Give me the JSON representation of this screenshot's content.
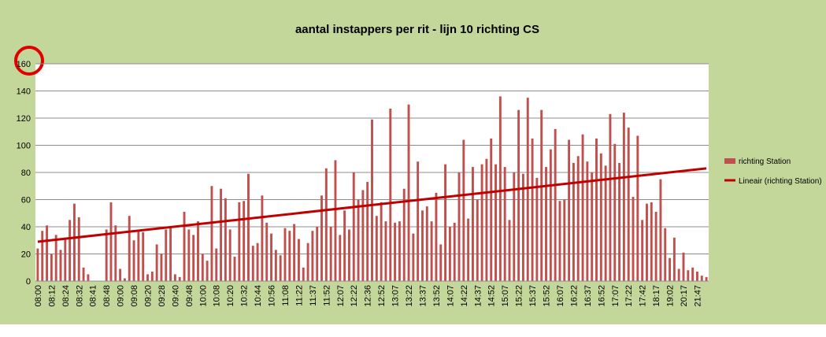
{
  "chart_data": {
    "type": "bar",
    "title": "aantal instappers per rit - lijn 10    richting CS",
    "categories": [
      "08:00",
      null,
      null,
      "08:12",
      null,
      null,
      "08:24",
      null,
      null,
      "08:32",
      null,
      null,
      "08:41",
      null,
      null,
      "08:48",
      null,
      null,
      "09:00",
      null,
      null,
      "09:08",
      null,
      null,
      "09:20",
      null,
      null,
      "09:28",
      null,
      null,
      "09:40",
      null,
      null,
      "09:48",
      null,
      null,
      "10:00",
      null,
      null,
      "10:08",
      null,
      null,
      "10:20",
      null,
      null,
      "10:32",
      null,
      null,
      "10:44",
      null,
      null,
      "10:56",
      null,
      null,
      "11:08",
      null,
      null,
      "11:22",
      null,
      null,
      "11:37",
      null,
      null,
      "11:52",
      null,
      null,
      "12:07",
      null,
      null,
      "12:22",
      null,
      null,
      "12:36",
      null,
      null,
      "12:52",
      null,
      null,
      "13:07",
      null,
      null,
      "13:22",
      null,
      null,
      "13:37",
      null,
      null,
      "13:52",
      null,
      null,
      "14:07",
      null,
      null,
      "14:22",
      null,
      null,
      "14:37",
      null,
      null,
      "14:52",
      null,
      null,
      "15:07",
      null,
      null,
      "15:22",
      null,
      null,
      "15:37",
      null,
      null,
      "15:52",
      null,
      null,
      "16:07",
      null,
      null,
      "16:22",
      null,
      null,
      "16:37",
      null,
      null,
      "16:52",
      null,
      null,
      "17:07",
      null,
      null,
      "17:22",
      null,
      null,
      "17:42",
      null,
      null,
      "18:17",
      null,
      null,
      "19:02",
      null,
      null,
      "20:17",
      null,
      null,
      "21:47",
      null,
      null
    ],
    "series": [
      {
        "name": "richting Station",
        "color": "#c0504d",
        "values": [
          24,
          37,
          41,
          20,
          34,
          23,
          32,
          45,
          57,
          47,
          10,
          5,
          0,
          0,
          0,
          38,
          58,
          41,
          9,
          2,
          48,
          30,
          37,
          36,
          5,
          7,
          27,
          20,
          38,
          40,
          5,
          3,
          51,
          38,
          34,
          44,
          20,
          15,
          70,
          24,
          68,
          61,
          38,
          18,
          58,
          59,
          79,
          26,
          28,
          63,
          43,
          35,
          23,
          19,
          39,
          37,
          42,
          31,
          10,
          28,
          37,
          40,
          63,
          83,
          40,
          89,
          34,
          52,
          38,
          80,
          60,
          67,
          73,
          119,
          48,
          58,
          44,
          127,
          43,
          44,
          68,
          130,
          35,
          88,
          52,
          55,
          44,
          65,
          27,
          86,
          40,
          43,
          80,
          104,
          46,
          84,
          60,
          86,
          90,
          105,
          86,
          136,
          84,
          45,
          80,
          126,
          79,
          135,
          105,
          76,
          126,
          84,
          97,
          112,
          59,
          60,
          104,
          87,
          92,
          108,
          88,
          80,
          105,
          94,
          85,
          123,
          101,
          87,
          124,
          113,
          62,
          107,
          45,
          57,
          58,
          51,
          75,
          39,
          17,
          32,
          9,
          21,
          8,
          10,
          7,
          4,
          3
        ]
      }
    ],
    "trendline": {
      "name": "Lineair (richting Station)",
      "color": "#c00000",
      "start": 29,
      "end": 83
    },
    "ylim": [
      0,
      160
    ],
    "yticks": [
      0,
      20,
      40,
      60,
      80,
      100,
      120,
      140,
      160
    ],
    "grid": true
  }
}
